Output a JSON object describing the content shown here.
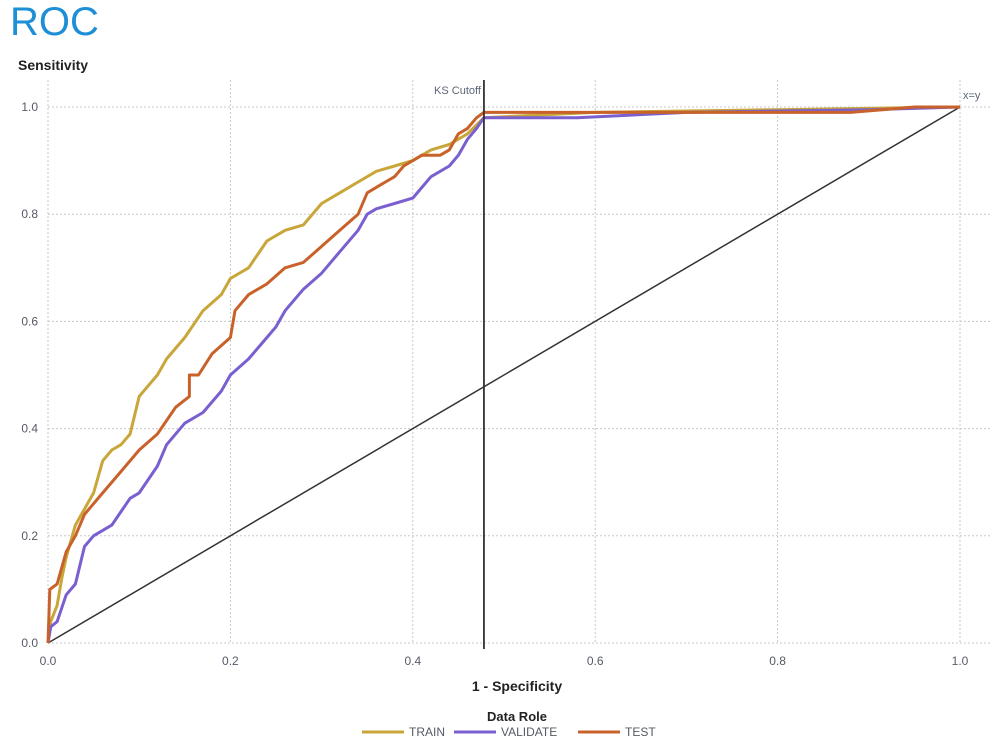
{
  "chart_data": {
    "type": "line",
    "title": "ROC",
    "ylabel": "Sensitivity",
    "xlabel": "1 - Specificity",
    "xlim": [
      0,
      1
    ],
    "ylim": [
      0,
      1
    ],
    "x_ticks": [
      "0.0",
      "0.2",
      "0.4",
      "0.6",
      "0.8",
      "1.0"
    ],
    "y_ticks": [
      "0.0",
      "0.2",
      "0.4",
      "0.6",
      "0.8",
      "1.0"
    ],
    "grid": true,
    "legend_title": "Data Role",
    "legend_position": "bottom",
    "ks_cutoff": {
      "label": "KS Cutoff",
      "x": 0.478
    },
    "reference_line": {
      "label": "x=y"
    },
    "series": [
      {
        "name": "TRAIN",
        "color": "#c9a63a",
        "points": [
          [
            0,
            0
          ],
          [
            0.003,
            0.04
          ],
          [
            0.01,
            0.07
          ],
          [
            0.015,
            0.12
          ],
          [
            0.02,
            0.16
          ],
          [
            0.03,
            0.22
          ],
          [
            0.04,
            0.25
          ],
          [
            0.05,
            0.28
          ],
          [
            0.06,
            0.34
          ],
          [
            0.07,
            0.36
          ],
          [
            0.08,
            0.37
          ],
          [
            0.09,
            0.39
          ],
          [
            0.1,
            0.46
          ],
          [
            0.12,
            0.5
          ],
          [
            0.13,
            0.53
          ],
          [
            0.15,
            0.57
          ],
          [
            0.17,
            0.62
          ],
          [
            0.19,
            0.65
          ],
          [
            0.2,
            0.68
          ],
          [
            0.22,
            0.7
          ],
          [
            0.24,
            0.75
          ],
          [
            0.26,
            0.77
          ],
          [
            0.28,
            0.78
          ],
          [
            0.3,
            0.82
          ],
          [
            0.32,
            0.84
          ],
          [
            0.34,
            0.86
          ],
          [
            0.36,
            0.88
          ],
          [
            0.38,
            0.89
          ],
          [
            0.4,
            0.9
          ],
          [
            0.42,
            0.92
          ],
          [
            0.44,
            0.93
          ],
          [
            0.46,
            0.95
          ],
          [
            0.478,
            0.98
          ],
          [
            0.6,
            0.99
          ],
          [
            0.8,
            0.995
          ],
          [
            1,
            1
          ]
        ]
      },
      {
        "name": "VALIDATE",
        "color": "#7a5fd0",
        "points": [
          [
            0,
            0
          ],
          [
            0.003,
            0.03
          ],
          [
            0.01,
            0.04
          ],
          [
            0.02,
            0.09
          ],
          [
            0.03,
            0.11
          ],
          [
            0.04,
            0.18
          ],
          [
            0.05,
            0.2
          ],
          [
            0.07,
            0.22
          ],
          [
            0.09,
            0.27
          ],
          [
            0.1,
            0.28
          ],
          [
            0.12,
            0.33
          ],
          [
            0.13,
            0.37
          ],
          [
            0.15,
            0.41
          ],
          [
            0.17,
            0.43
          ],
          [
            0.19,
            0.47
          ],
          [
            0.2,
            0.5
          ],
          [
            0.22,
            0.53
          ],
          [
            0.24,
            0.57
          ],
          [
            0.25,
            0.59
          ],
          [
            0.26,
            0.62
          ],
          [
            0.28,
            0.66
          ],
          [
            0.3,
            0.69
          ],
          [
            0.32,
            0.73
          ],
          [
            0.34,
            0.77
          ],
          [
            0.35,
            0.8
          ],
          [
            0.36,
            0.81
          ],
          [
            0.38,
            0.82
          ],
          [
            0.4,
            0.83
          ],
          [
            0.41,
            0.85
          ],
          [
            0.42,
            0.87
          ],
          [
            0.44,
            0.89
          ],
          [
            0.45,
            0.91
          ],
          [
            0.46,
            0.94
          ],
          [
            0.47,
            0.96
          ],
          [
            0.478,
            0.98
          ],
          [
            0.58,
            0.98
          ],
          [
            0.7,
            0.99
          ],
          [
            0.9,
            0.995
          ],
          [
            1,
            1
          ]
        ]
      },
      {
        "name": "TEST",
        "color": "#c8622a",
        "points": [
          [
            0,
            0
          ],
          [
            0.002,
            0.1
          ],
          [
            0.01,
            0.11
          ],
          [
            0.02,
            0.17
          ],
          [
            0.03,
            0.2
          ],
          [
            0.04,
            0.24
          ],
          [
            0.06,
            0.28
          ],
          [
            0.08,
            0.32
          ],
          [
            0.1,
            0.36
          ],
          [
            0.12,
            0.39
          ],
          [
            0.14,
            0.44
          ],
          [
            0.155,
            0.46
          ],
          [
            0.155,
            0.5
          ],
          [
            0.165,
            0.5
          ],
          [
            0.18,
            0.54
          ],
          [
            0.2,
            0.57
          ],
          [
            0.205,
            0.62
          ],
          [
            0.22,
            0.65
          ],
          [
            0.24,
            0.67
          ],
          [
            0.26,
            0.7
          ],
          [
            0.28,
            0.71
          ],
          [
            0.3,
            0.74
          ],
          [
            0.32,
            0.77
          ],
          [
            0.34,
            0.8
          ],
          [
            0.35,
            0.84
          ],
          [
            0.37,
            0.86
          ],
          [
            0.38,
            0.87
          ],
          [
            0.39,
            0.89
          ],
          [
            0.41,
            0.91
          ],
          [
            0.43,
            0.91
          ],
          [
            0.44,
            0.92
          ],
          [
            0.45,
            0.95
          ],
          [
            0.46,
            0.96
          ],
          [
            0.47,
            0.98
          ],
          [
            0.478,
            0.99
          ],
          [
            0.6,
            0.99
          ],
          [
            0.88,
            0.99
          ],
          [
            0.95,
            1
          ],
          [
            1,
            1
          ]
        ]
      }
    ]
  }
}
